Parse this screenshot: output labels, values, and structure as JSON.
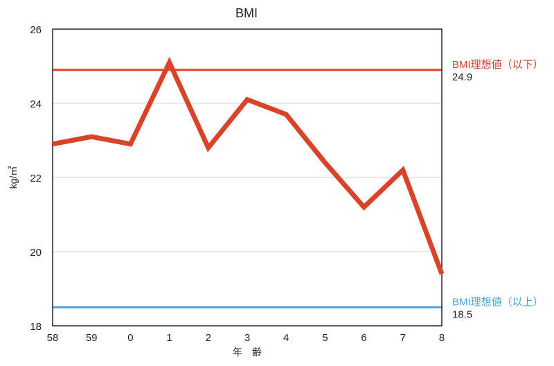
{
  "colors": {
    "series": "#d9432a",
    "upper_ref": "#d9432a",
    "lower_ref": "#4aa3df",
    "grid": "#d0d0d0",
    "axis": "#222222"
  },
  "chart_data": {
    "type": "line",
    "title": "BMI",
    "xlabel": "年　齢",
    "ylabel": "kg/㎡",
    "categories": [
      "58",
      "59",
      "0",
      "1",
      "2",
      "3",
      "4",
      "5",
      "6",
      "7",
      "8"
    ],
    "series": [
      {
        "values": [
          22.9,
          23.1,
          22.9,
          25.1,
          22.8,
          24.1,
          23.7,
          22.4,
          21.2,
          22.2,
          19.4
        ]
      }
    ],
    "ylim": [
      18,
      26
    ],
    "yticks": [
      "18",
      "20",
      "22",
      "24",
      "26"
    ],
    "grid": true,
    "reference_lines": [
      {
        "label": "BMI理想値（以下）",
        "value": 24.9,
        "value_label": "24.9"
      },
      {
        "label": "BMI理想値（以上）",
        "value": 18.5,
        "value_label": "18.5"
      }
    ]
  }
}
